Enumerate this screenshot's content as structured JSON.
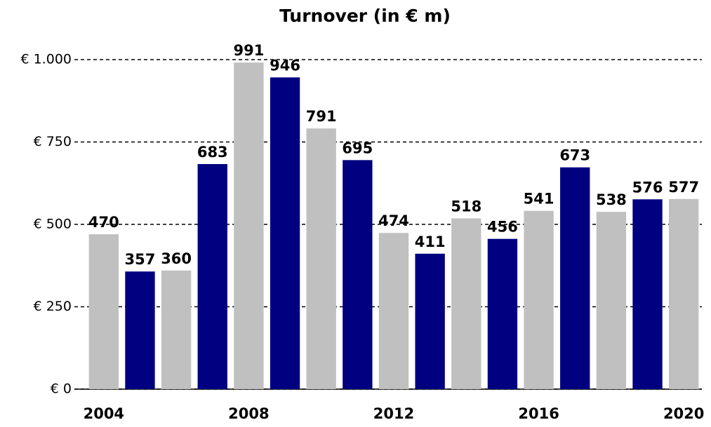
{
  "chart_data": {
    "type": "bar",
    "title": "Turnover (in € m)",
    "categories": [
      "2004",
      null,
      null,
      null,
      "2008",
      null,
      null,
      null,
      "2012",
      null,
      null,
      null,
      "2016",
      null,
      null,
      null,
      "2020"
    ],
    "values": [
      470,
      357,
      360,
      683,
      991,
      946,
      791,
      695,
      474,
      411,
      518,
      456,
      541,
      673,
      538,
      576,
      577
    ],
    "colors": [
      "#c0c0c0",
      "#000080",
      "#c0c0c0",
      "#000080",
      "#c0c0c0",
      "#000080",
      "#c0c0c0",
      "#000080",
      "#c0c0c0",
      "#000080",
      "#c0c0c0",
      "#000080",
      "#c0c0c0",
      "#000080",
      "#c0c0c0",
      "#000080",
      "#c0c0c0"
    ],
    "ylim": [
      0,
      1000
    ],
    "yticks": [
      {
        "value": 0,
        "label": "€ 0"
      },
      {
        "value": 250,
        "label": "€ 250"
      },
      {
        "value": 500,
        "label": "€ 500"
      },
      {
        "value": 750,
        "label": "€ 750"
      },
      {
        "value": 1000,
        "label": "€ 1.000"
      }
    ],
    "grid": true
  }
}
